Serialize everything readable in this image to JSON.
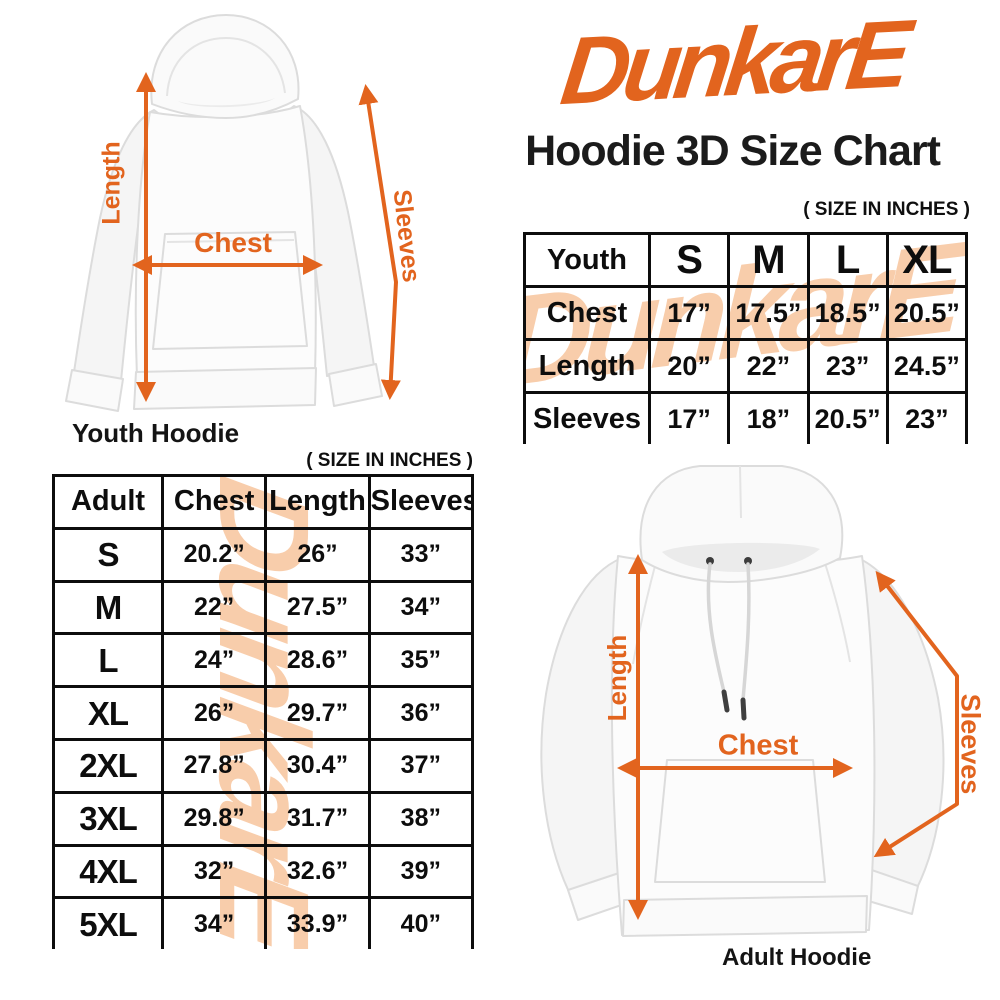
{
  "accent_color": "#E2641E",
  "watermark_color": "#F8CDAB",
  "logo_text": "DunkarE",
  "header": {
    "title": "Hoodie 3D Size Chart"
  },
  "youth_section": {
    "size_note": "( SIZE IN INCHES )",
    "figure": {
      "caption": "Youth Hoodie",
      "length_label": "Length",
      "chest_label": "Chest",
      "sleeves_label": "Sleeves"
    },
    "table": {
      "watermark": "DunkarE",
      "header": [
        "Youth",
        "S",
        "M",
        "L",
        "XL"
      ],
      "rows": [
        [
          "Chest",
          "17”",
          "17.5”",
          "18.5”",
          "20.5”"
        ],
        [
          "Length",
          "20”",
          "22”",
          "23”",
          "24.5”"
        ],
        [
          "Sleeves",
          "17”",
          "18”",
          "20.5”",
          "23”"
        ]
      ]
    }
  },
  "adult_section": {
    "size_note": "( SIZE IN INCHES )",
    "figure": {
      "caption": "Adult Hoodie",
      "length_label": "Length",
      "chest_label": "Chest",
      "sleeves_label": "Sleeves"
    },
    "table": {
      "watermark": "DunkarE",
      "header": [
        "Adult",
        "Chest",
        "Length",
        "Sleeves"
      ],
      "rows": [
        [
          "S",
          "20.2”",
          "26”",
          "33”"
        ],
        [
          "M",
          "22”",
          "27.5”",
          "34”"
        ],
        [
          "L",
          "24”",
          "28.6”",
          "35”"
        ],
        [
          "XL",
          "26”",
          "29.7”",
          "36”"
        ],
        [
          "2XL",
          "27.8”",
          "30.4”",
          "37”"
        ],
        [
          "3XL",
          "29.8”",
          "31.7”",
          "38”"
        ],
        [
          "4XL",
          "32”",
          "32.6”",
          "39”"
        ],
        [
          "5XL",
          "34”",
          "33.9”",
          "40”"
        ]
      ]
    }
  }
}
